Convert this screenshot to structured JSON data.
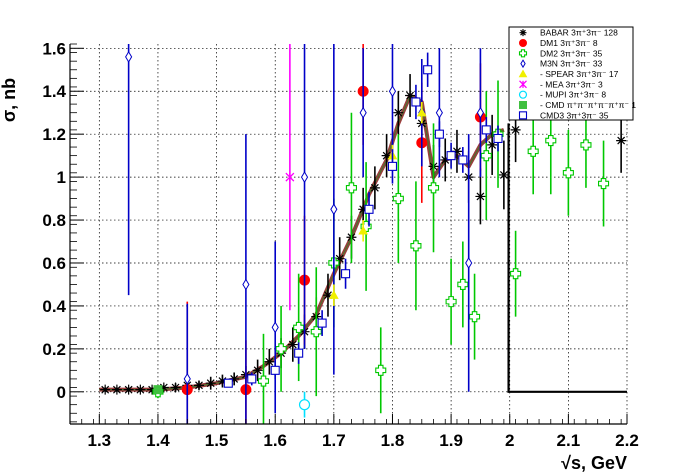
{
  "chart_data": {
    "type": "scatter",
    "xlabel": "√s, GeV",
    "ylabel": "σ, nb",
    "xlim": [
      1.25,
      2.2
    ],
    "ylim": [
      -0.15,
      1.62
    ],
    "xticks": [
      "1.3",
      "1.4",
      "1.5",
      "1.6",
      "1.7",
      "1.8",
      "1.9",
      "2",
      "2.1",
      "2.2"
    ],
    "yticks": [
      "0",
      "0.2",
      "0.4",
      "0.6",
      "0.8",
      "1",
      "1.2",
      "1.4",
      "1.6"
    ],
    "grid": true,
    "legend_position": "top-right",
    "series": [
      {
        "name": "BABAR 3π⁺3π⁻ 128",
        "color": "#000000",
        "marker": "star",
        "points": [
          [
            1.31,
            0.01,
            0.01
          ],
          [
            1.33,
            0.01,
            0.01
          ],
          [
            1.35,
            0.01,
            0.01
          ],
          [
            1.37,
            0.01,
            0.01
          ],
          [
            1.39,
            0.01,
            0.01
          ],
          [
            1.41,
            0.02,
            0.01
          ],
          [
            1.43,
            0.02,
            0.02
          ],
          [
            1.45,
            0.03,
            0.02
          ],
          [
            1.47,
            0.03,
            0.02
          ],
          [
            1.49,
            0.04,
            0.03
          ],
          [
            1.51,
            0.05,
            0.03
          ],
          [
            1.53,
            0.06,
            0.03
          ],
          [
            1.55,
            0.08,
            0.04
          ],
          [
            1.57,
            0.1,
            0.05
          ],
          [
            1.59,
            0.14,
            0.06
          ],
          [
            1.61,
            0.18,
            0.07
          ],
          [
            1.63,
            0.22,
            0.08
          ],
          [
            1.65,
            0.28,
            0.08
          ],
          [
            1.67,
            0.35,
            0.09
          ],
          [
            1.69,
            0.45,
            0.1
          ],
          [
            1.71,
            0.62,
            0.1
          ],
          [
            1.73,
            0.72,
            0.1
          ],
          [
            1.75,
            0.85,
            0.1
          ],
          [
            1.77,
            0.95,
            0.1
          ],
          [
            1.79,
            1.1,
            0.1
          ],
          [
            1.81,
            1.3,
            0.1
          ],
          [
            1.83,
            1.38,
            0.1
          ],
          [
            1.85,
            1.25,
            0.1
          ],
          [
            1.87,
            1.05,
            0.1
          ],
          [
            1.89,
            1.08,
            0.1
          ],
          [
            1.91,
            1.12,
            0.1
          ],
          [
            1.93,
            1.0,
            0.12
          ],
          [
            1.95,
            0.91,
            0.13
          ],
          [
            1.97,
            1.15,
            0.14
          ],
          [
            1.99,
            1.01,
            0.16
          ],
          [
            2.01,
            1.22,
            0.15
          ],
          [
            2.19,
            1.17,
            0.15
          ]
        ]
      },
      {
        "name": "DM1 3π⁺3π⁻ 8",
        "color": "#ff0000",
        "marker": "circle",
        "points": [
          [
            1.45,
            0.01,
            0.41
          ],
          [
            1.55,
            0.01,
            0.23
          ],
          [
            1.65,
            0.52,
            0.3
          ],
          [
            1.75,
            1.4,
            0.25
          ],
          [
            1.85,
            1.16,
            0.28
          ],
          [
            1.95,
            1.28,
            0.25
          ]
        ]
      },
      {
        "name": "DM2 3π⁺3π⁻ 35",
        "color": "#00c800",
        "marker": "open-cross",
        "points": [
          [
            1.4,
            0.0,
            0.03
          ],
          [
            1.58,
            0.05,
            0.22
          ],
          [
            1.61,
            0.2,
            0.2
          ],
          [
            1.64,
            0.3,
            0.25
          ],
          [
            1.67,
            0.28,
            0.3
          ],
          [
            1.7,
            0.6,
            0.3
          ],
          [
            1.73,
            0.95,
            0.35
          ],
          [
            1.755,
            0.77,
            0.3
          ],
          [
            1.78,
            0.1,
            0.2
          ],
          [
            1.81,
            0.9,
            0.3
          ],
          [
            1.84,
            0.68,
            0.3
          ],
          [
            1.87,
            0.95,
            0.3
          ],
          [
            1.9,
            0.42,
            0.2
          ],
          [
            1.92,
            0.5,
            0.2
          ],
          [
            1.94,
            0.35,
            0.2
          ],
          [
            1.96,
            1.1,
            0.3
          ],
          [
            1.98,
            1.2,
            0.25
          ],
          [
            2.01,
            0.55,
            0.2
          ],
          [
            2.04,
            1.12,
            0.2
          ],
          [
            2.07,
            1.17,
            0.25
          ],
          [
            2.1,
            1.02,
            0.2
          ],
          [
            2.13,
            1.15,
            0.2
          ],
          [
            2.16,
            0.97,
            0.2
          ]
        ]
      },
      {
        "name": "M3N 3π⁺3π⁻ 33",
        "color": "#0000c8",
        "marker": "open-diamond",
        "points": [
          [
            1.35,
            1.56,
            1.11
          ],
          [
            1.45,
            0.06,
            0.35
          ],
          [
            1.55,
            0.5,
            0.7
          ],
          [
            1.6,
            0.3,
            0.4
          ],
          [
            1.65,
            1.0,
            0.8
          ],
          [
            1.7,
            0.85,
            0.77
          ],
          [
            1.75,
            1.3,
            0.3
          ],
          [
            1.8,
            1.4,
            0.3
          ],
          [
            1.85,
            1.3,
            0.25
          ],
          [
            1.88,
            1.3,
            0.3
          ],
          [
            1.93,
            0.6,
            0.6
          ],
          [
            1.95,
            1.3,
            0.3
          ]
        ]
      },
      {
        "name": "- SPEAR 3π⁺3π⁻ 17",
        "color": "#f0f000",
        "marker": "triangle",
        "points": [
          [
            1.7,
            0.45,
            0.05
          ],
          [
            1.75,
            0.75,
            0.05
          ],
          [
            1.8,
            1.1,
            0.05
          ],
          [
            1.85,
            1.3,
            0.05
          ],
          [
            1.9,
            1.1,
            0.05
          ]
        ]
      },
      {
        "name": "- MEA 3π⁺3π⁻ 3",
        "color": "#ff00ff",
        "marker": "x",
        "points": [
          [
            1.625,
            1.0,
            0.62
          ]
        ]
      },
      {
        "name": "- MUPI 3π⁺3π⁻ 8",
        "color": "#00e0ff",
        "marker": "open-circle",
        "points": [
          [
            1.65,
            -0.06,
            0.06
          ]
        ]
      },
      {
        "name": "- CMD π⁺π⁻π⁺π⁻π⁺π⁻ 1",
        "color": "#40c040",
        "marker": "square",
        "points": [
          [
            1.4,
            0.01,
            0.02
          ]
        ]
      },
      {
        "name": "CMD3 3π⁺3π⁻ 35",
        "color": "#0000c8",
        "marker": "open-square",
        "points": [
          [
            1.52,
            0.04,
            0.02
          ],
          [
            1.56,
            0.06,
            0.03
          ],
          [
            1.6,
            0.1,
            0.04
          ],
          [
            1.64,
            0.18,
            0.05
          ],
          [
            1.68,
            0.32,
            0.06
          ],
          [
            1.72,
            0.55,
            0.07
          ],
          [
            1.76,
            0.85,
            0.08
          ],
          [
            1.8,
            1.05,
            0.08
          ],
          [
            1.84,
            1.35,
            0.08
          ],
          [
            1.86,
            1.5,
            0.08
          ],
          [
            1.88,
            1.2,
            0.06
          ],
          [
            1.9,
            1.1,
            0.06
          ],
          [
            1.92,
            1.08,
            0.06
          ],
          [
            1.96,
            1.22,
            0.06
          ],
          [
            1.98,
            1.18,
            0.06
          ]
        ]
      }
    ],
    "curve_x": [
      1.3,
      1.35,
      1.4,
      1.45,
      1.5,
      1.55,
      1.58,
      1.61,
      1.64,
      1.67,
      1.7,
      1.73,
      1.76,
      1.79,
      1.81,
      1.83,
      1.85,
      1.87,
      1.89,
      1.91,
      1.93,
      1.95,
      1.97,
      1.99
    ],
    "curve_y": [
      0.01,
      0.01,
      0.01,
      0.02,
      0.04,
      0.07,
      0.12,
      0.18,
      0.26,
      0.36,
      0.55,
      0.72,
      0.92,
      1.08,
      1.25,
      1.38,
      1.35,
      1.0,
      1.08,
      1.1,
      1.05,
      1.15,
      1.2,
      1.22
    ],
    "step_line_x": [
      1.998,
      1.998,
      2.2
    ],
    "step_line_y": [
      1.25,
      0.0,
      0.0
    ]
  }
}
